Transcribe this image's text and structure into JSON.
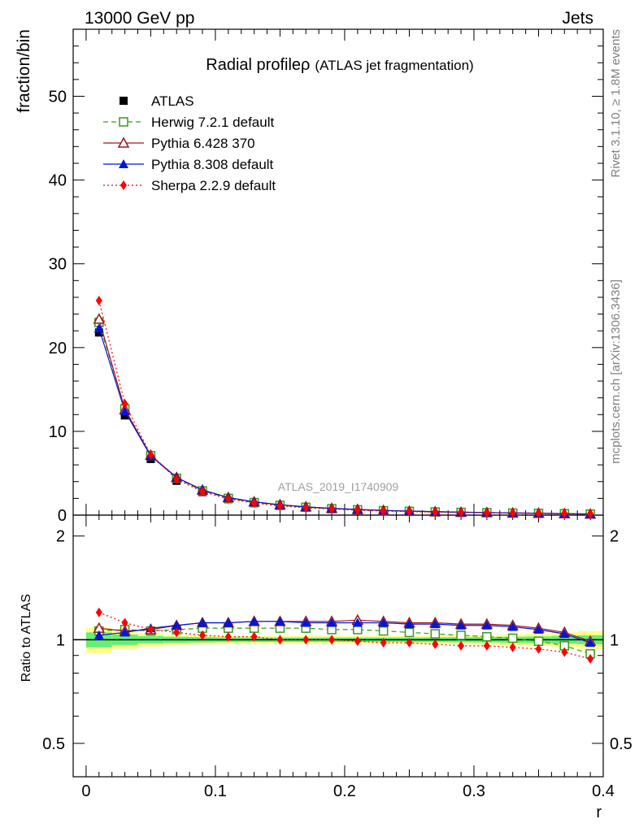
{
  "header": {
    "left": "13000 GeV pp",
    "right": "Jets"
  },
  "side_labels": {
    "rivet": "Rivet 3.1.10, ≥ 1.8M events",
    "mcplots": "mcplots.cern.ch [arXiv:1306.3436]"
  },
  "watermark": "ATLAS_2019_I1740909",
  "colors": {
    "atlas": "#000000",
    "herwig": "#3a9a1a",
    "pythia6": "#a0141e",
    "pythia8": "#0016d8",
    "sherpa": "#ff0000",
    "band_inner": "#66ee77",
    "band_outer": "#ffff88"
  },
  "chart_data": [
    {
      "type": "line",
      "panel": "main",
      "title_main": "Radial profile",
      "title_symbol": "ρ",
      "title_sub": "(ATLAS jet fragmentation)",
      "ylabel": "fraction/bin",
      "xlim": [
        -0.01,
        0.4
      ],
      "ylim": [
        0,
        58
      ],
      "yticks": [
        "0",
        "10",
        "20",
        "30",
        "40",
        "50"
      ],
      "yticks_values": [
        0,
        10,
        20,
        30,
        40,
        50
      ],
      "legend_placement": "top-left",
      "x": [
        0.01,
        0.03,
        0.05,
        0.07,
        0.09,
        0.11,
        0.13,
        0.15,
        0.17,
        0.19,
        0.21,
        0.23,
        0.25,
        0.27,
        0.29,
        0.31,
        0.33,
        0.35,
        0.37,
        0.39
      ],
      "series": [
        {
          "name": "ATLAS",
          "key": "atlas",
          "marker": "square-filled",
          "dash": "none",
          "values": [
            21.8,
            11.9,
            6.7,
            4.1,
            2.75,
            1.9,
            1.42,
            1.1,
            0.88,
            0.72,
            0.6,
            0.5,
            0.43,
            0.37,
            0.32,
            0.28,
            0.24,
            0.21,
            0.17,
            0.13
          ]
        },
        {
          "name": "Herwig 7.2.1 default",
          "key": "herwig",
          "marker": "square-open",
          "dash": "6,4",
          "values": [
            23.0,
            12.7,
            7.1,
            4.4,
            2.9,
            2.0,
            1.5,
            1.17,
            0.94,
            0.77,
            0.64,
            0.53,
            0.45,
            0.38,
            0.33,
            0.29,
            0.25,
            0.21,
            0.17,
            0.12
          ]
        },
        {
          "name": "Pythia 6.428 370",
          "key": "pythia6",
          "marker": "triangle-open",
          "dash": "none",
          "values": [
            23.4,
            12.6,
            7.15,
            4.5,
            3.0,
            2.1,
            1.59,
            1.24,
            0.99,
            0.81,
            0.68,
            0.56,
            0.48,
            0.41,
            0.35,
            0.31,
            0.26,
            0.23,
            0.18,
            0.13
          ]
        },
        {
          "name": "Pythia 8.308 default",
          "key": "pythia8",
          "marker": "triangle-filled",
          "dash": "none",
          "values": [
            22.3,
            12.4,
            7.05,
            4.5,
            3.0,
            2.09,
            1.58,
            1.23,
            0.98,
            0.8,
            0.67,
            0.56,
            0.48,
            0.41,
            0.35,
            0.31,
            0.26,
            0.22,
            0.17,
            0.13
          ]
        },
        {
          "name": "Sherpa 2.2.9 default",
          "key": "sherpa",
          "marker": "diamond-filled",
          "dash": "2,3",
          "values": [
            25.6,
            13.3,
            7.2,
            4.3,
            2.8,
            1.94,
            1.44,
            1.1,
            0.88,
            0.72,
            0.59,
            0.49,
            0.42,
            0.36,
            0.31,
            0.27,
            0.23,
            0.2,
            0.16,
            0.12
          ]
        }
      ]
    },
    {
      "type": "line",
      "panel": "ratio",
      "ylabel": "Ratio to ATLAS",
      "xlabel": "r",
      "xlim": [
        -0.01,
        0.4
      ],
      "ylim": [
        0.4,
        2.3
      ],
      "log_y": true,
      "yticks": [
        "0.5",
        "1",
        "2"
      ],
      "yticks_values": [
        0.5,
        1,
        2
      ],
      "xticks": [
        "0",
        "0.1",
        "0.2",
        "0.3",
        "0.4"
      ],
      "xticks_values": [
        0,
        0.1,
        0.2,
        0.3,
        0.4
      ],
      "x": [
        0.01,
        0.03,
        0.05,
        0.07,
        0.09,
        0.11,
        0.13,
        0.15,
        0.17,
        0.19,
        0.21,
        0.23,
        0.25,
        0.27,
        0.29,
        0.31,
        0.33,
        0.35,
        0.37,
        0.39
      ],
      "band_inner": [
        0.05,
        0.035,
        0.025,
        0.02,
        0.018,
        0.016,
        0.015,
        0.015,
        0.015,
        0.015,
        0.015,
        0.015,
        0.015,
        0.016,
        0.017,
        0.018,
        0.02,
        0.022,
        0.026,
        0.03
      ],
      "band_outer": [
        0.085,
        0.06,
        0.045,
        0.035,
        0.03,
        0.028,
        0.027,
        0.026,
        0.026,
        0.026,
        0.026,
        0.026,
        0.027,
        0.028,
        0.03,
        0.032,
        0.036,
        0.042,
        0.05,
        0.06
      ],
      "series": [
        {
          "name": "Herwig 7.2.1 default",
          "key": "herwig",
          "marker": "square-open",
          "dash": "6,4",
          "values": [
            1.06,
            1.07,
            1.06,
            1.07,
            1.08,
            1.08,
            1.08,
            1.08,
            1.08,
            1.07,
            1.07,
            1.06,
            1.05,
            1.04,
            1.03,
            1.02,
            1.01,
            0.99,
            0.96,
            0.91
          ]
        },
        {
          "name": "Pythia 6.428 370",
          "key": "pythia6",
          "marker": "triangle-open",
          "dash": "none",
          "values": [
            1.08,
            1.06,
            1.07,
            1.1,
            1.12,
            1.12,
            1.13,
            1.13,
            1.13,
            1.13,
            1.14,
            1.13,
            1.12,
            1.12,
            1.11,
            1.11,
            1.1,
            1.08,
            1.05,
            0.99
          ]
        },
        {
          "name": "Pythia 8.308 default",
          "key": "pythia8",
          "marker": "triangle-filled",
          "dash": "none",
          "values": [
            1.03,
            1.05,
            1.08,
            1.1,
            1.12,
            1.12,
            1.13,
            1.13,
            1.12,
            1.12,
            1.12,
            1.12,
            1.11,
            1.11,
            1.1,
            1.1,
            1.09,
            1.07,
            1.04,
            0.98
          ]
        },
        {
          "name": "Sherpa 2.2.9 default",
          "key": "sherpa",
          "marker": "diamond-filled",
          "dash": "2,3",
          "values": [
            1.2,
            1.12,
            1.07,
            1.05,
            1.03,
            1.02,
            1.02,
            1.0,
            1.0,
            1.0,
            0.99,
            0.98,
            0.98,
            0.97,
            0.96,
            0.96,
            0.95,
            0.94,
            0.92,
            0.88
          ]
        }
      ]
    }
  ]
}
